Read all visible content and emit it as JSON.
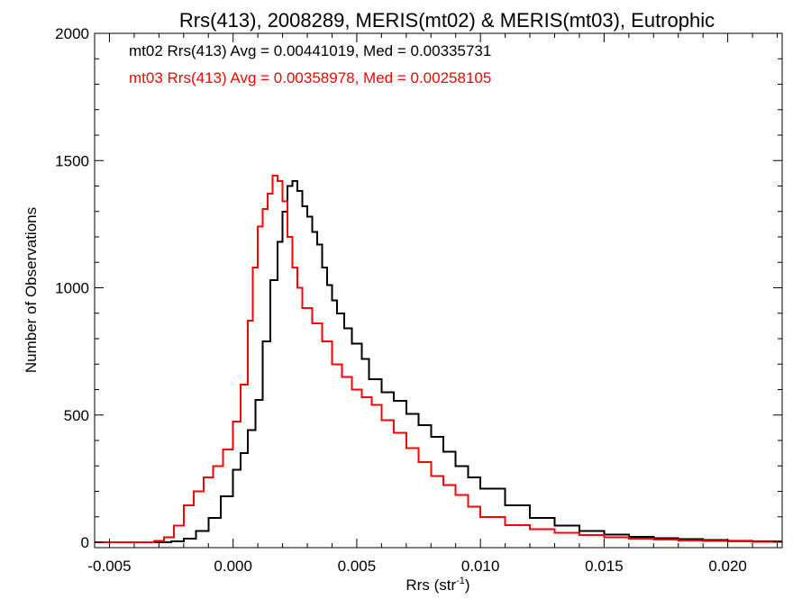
{
  "chart_data": {
    "type": "line",
    "step": true,
    "title": "Rrs(413), 2008289, MERIS(mt02) & MERIS(mt03), Eutrophic",
    "xlabel": "Rrs (str",
    "xlabel_sup": "-1",
    "xlabel_end": ")",
    "ylabel": "Number of Observations",
    "xlim": [
      -0.0056,
      0.0222
    ],
    "ylim": [
      0,
      2000
    ],
    "xticks": [
      -0.005,
      0.0,
      0.005,
      0.01,
      0.015,
      0.02
    ],
    "xtick_labels": [
      "-0.005",
      "0.000",
      "0.005",
      "0.010",
      "0.015",
      "0.020"
    ],
    "yticks": [
      0,
      500,
      1000,
      1500,
      2000
    ],
    "ytick_labels": [
      "0",
      "500",
      "1000",
      "1500",
      "2000"
    ],
    "grid": false,
    "legend_position": "top-left",
    "series": [
      {
        "name": "mt02 Rrs(413) Avg = 0.00441019, Med = 0.00335731",
        "color": "#000000",
        "points": [
          [
            -0.0056,
            0
          ],
          [
            -0.0035,
            0
          ],
          [
            -0.0025,
            3
          ],
          [
            -0.002,
            15
          ],
          [
            -0.0015,
            45
          ],
          [
            -0.001,
            95
          ],
          [
            -0.0005,
            180
          ],
          [
            0.0,
            285
          ],
          [
            0.0003,
            350
          ],
          [
            0.0006,
            440
          ],
          [
            0.0009,
            560
          ],
          [
            0.0012,
            790
          ],
          [
            0.0015,
            1030
          ],
          [
            0.0018,
            1180
          ],
          [
            0.002,
            1300
          ],
          [
            0.0022,
            1400
          ],
          [
            0.0024,
            1420
          ],
          [
            0.0026,
            1380
          ],
          [
            0.0028,
            1320
          ],
          [
            0.003,
            1280
          ],
          [
            0.0032,
            1220
          ],
          [
            0.0034,
            1170
          ],
          [
            0.0036,
            1080
          ],
          [
            0.0038,
            1010
          ],
          [
            0.004,
            950
          ],
          [
            0.0042,
            900
          ],
          [
            0.0045,
            840
          ],
          [
            0.0048,
            780
          ],
          [
            0.0052,
            720
          ],
          [
            0.0055,
            640
          ],
          [
            0.006,
            590
          ],
          [
            0.0065,
            555
          ],
          [
            0.007,
            505
          ],
          [
            0.0075,
            460
          ],
          [
            0.008,
            415
          ],
          [
            0.0085,
            355
          ],
          [
            0.009,
            300
          ],
          [
            0.0095,
            255
          ],
          [
            0.01,
            210
          ],
          [
            0.011,
            145
          ],
          [
            0.012,
            95
          ],
          [
            0.013,
            65
          ],
          [
            0.014,
            45
          ],
          [
            0.015,
            30
          ],
          [
            0.016,
            22
          ],
          [
            0.017,
            16
          ],
          [
            0.018,
            12
          ],
          [
            0.019,
            8
          ],
          [
            0.02,
            5
          ],
          [
            0.021,
            3
          ],
          [
            0.0222,
            2
          ]
        ]
      },
      {
        "name": "mt03 Rrs(413) Avg = 0.00358978, Med = 0.00258105",
        "color": "#ff0000",
        "points": [
          [
            -0.0056,
            0
          ],
          [
            -0.004,
            0
          ],
          [
            -0.0032,
            5
          ],
          [
            -0.0028,
            20
          ],
          [
            -0.0024,
            65
          ],
          [
            -0.002,
            145
          ],
          [
            -0.0016,
            200
          ],
          [
            -0.0012,
            255
          ],
          [
            -0.0008,
            300
          ],
          [
            -0.0004,
            365
          ],
          [
            0.0,
            475
          ],
          [
            0.0003,
            620
          ],
          [
            0.0006,
            870
          ],
          [
            0.0008,
            1080
          ],
          [
            0.001,
            1240
          ],
          [
            0.0012,
            1310
          ],
          [
            0.0014,
            1370
          ],
          [
            0.0016,
            1440
          ],
          [
            0.0018,
            1420
          ],
          [
            0.002,
            1340
          ],
          [
            0.0022,
            1200
          ],
          [
            0.0024,
            1080
          ],
          [
            0.0026,
            1000
          ],
          [
            0.0028,
            920
          ],
          [
            0.0032,
            860
          ],
          [
            0.0036,
            790
          ],
          [
            0.004,
            700
          ],
          [
            0.0044,
            650
          ],
          [
            0.0048,
            600
          ],
          [
            0.0052,
            570
          ],
          [
            0.0056,
            540
          ],
          [
            0.006,
            480
          ],
          [
            0.0065,
            430
          ],
          [
            0.007,
            370
          ],
          [
            0.0075,
            315
          ],
          [
            0.008,
            260
          ],
          [
            0.0085,
            225
          ],
          [
            0.009,
            185
          ],
          [
            0.0095,
            140
          ],
          [
            0.01,
            100
          ],
          [
            0.011,
            68
          ],
          [
            0.012,
            52
          ],
          [
            0.013,
            38
          ],
          [
            0.014,
            28
          ],
          [
            0.015,
            20
          ],
          [
            0.016,
            14
          ],
          [
            0.017,
            10
          ],
          [
            0.018,
            7
          ],
          [
            0.019,
            5
          ],
          [
            0.02,
            4
          ],
          [
            0.021,
            2
          ],
          [
            0.0222,
            1
          ]
        ]
      }
    ]
  }
}
